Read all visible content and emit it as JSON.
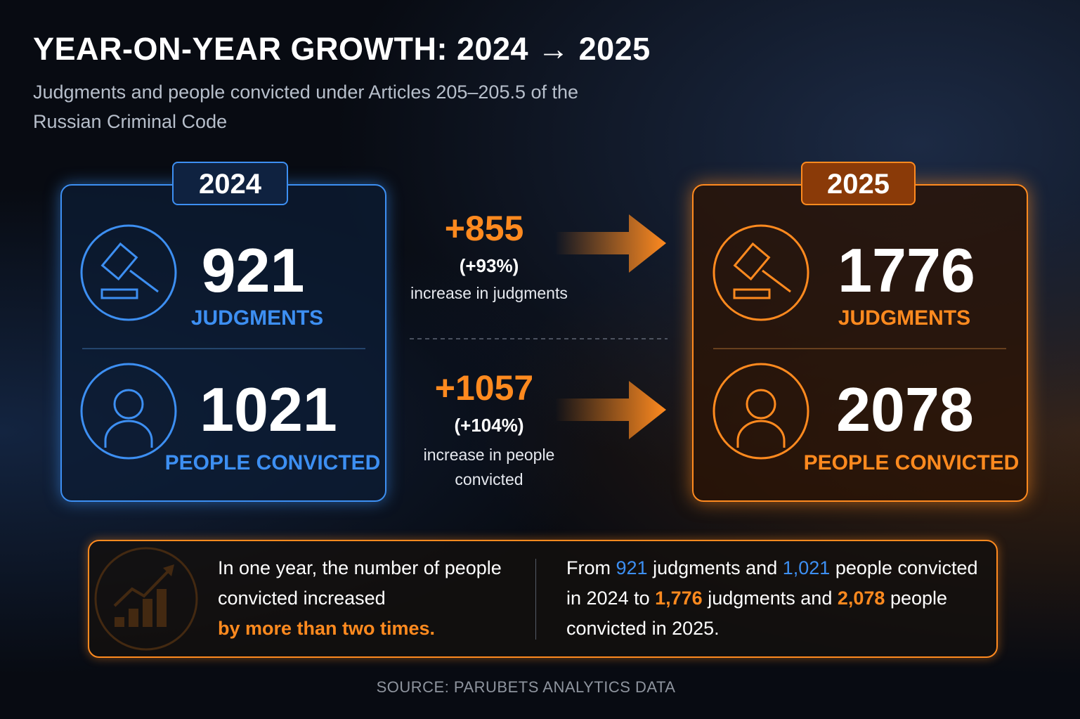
{
  "header": {
    "title": "YEAR-ON-YEAR GROWTH: 2024 → 2025",
    "subtitle": "Judgments and people convicted under Articles 205–205.5 of the Russian Criminal Code"
  },
  "panels": [
    {
      "year": "2024",
      "judgments": "921",
      "judgments_label": "JUDGMENTS",
      "people": "1021",
      "people_label": "PEOPLE CONVICTED"
    },
    {
      "year": "2025",
      "judgments": "1776",
      "judgments_label": "JUDGMENTS",
      "people": "2078",
      "people_label": "PEOPLE CONVICTED"
    }
  ],
  "changes": [
    {
      "delta": "+855",
      "percent": "(+93%)",
      "caption": "increase in judgments"
    },
    {
      "delta": "+1057",
      "percent": "(+104%)",
      "caption": "increase in people convicted"
    }
  ],
  "summary": {
    "left": [
      "In one year, the number of people convicted increased",
      "by more than two times."
    ],
    "right": [
      "From",
      "921",
      "judgments and",
      "1,021",
      "people convicted in 2024 to",
      "1,776",
      "judgments and",
      "2,078",
      "people convicted in 2025."
    ]
  },
  "source": "SOURCE: PARUBETS ANALYTICS DATA"
}
